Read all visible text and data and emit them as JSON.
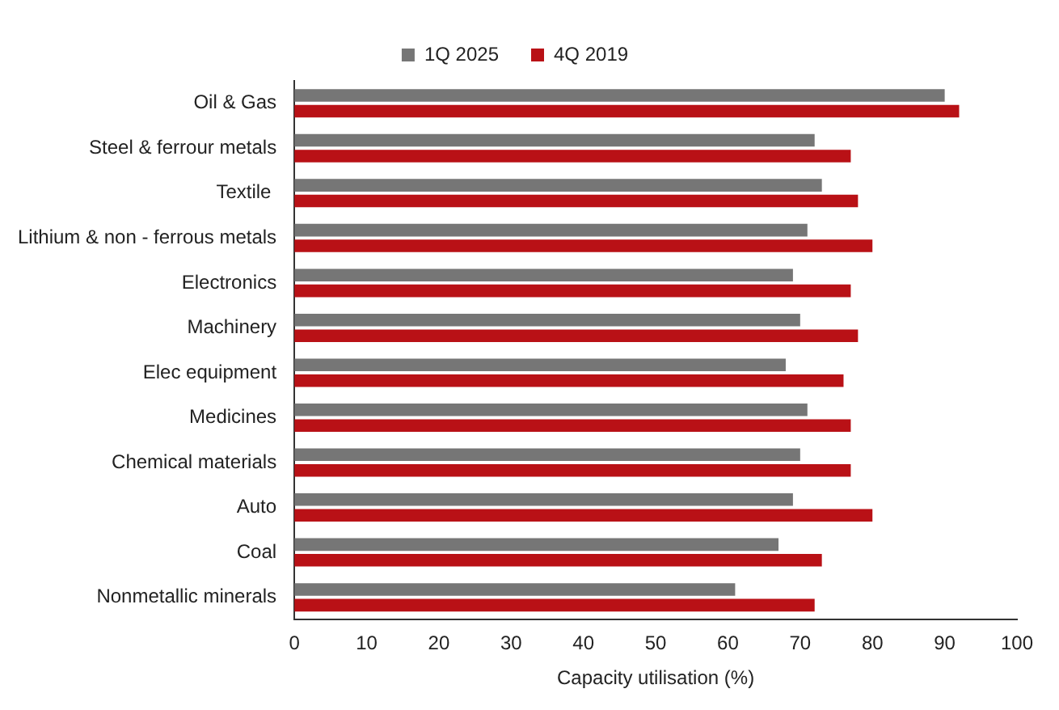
{
  "chart_data": {
    "type": "bar",
    "orientation": "horizontal",
    "xlabel": "Capacity utilisation (%)",
    "categories": [
      "Oil & Gas",
      "Steel & ferrour metals",
      "Textile ",
      "Lithium & non - ferrous metals",
      "Electronics",
      "Machinery",
      "Elec equipment",
      "Medicines",
      "Chemical materials",
      "Auto",
      "Coal",
      "Nonmetallic minerals"
    ],
    "series": [
      {
        "name": "1Q 2025",
        "color": "#767676",
        "values": [
          90,
          72,
          73,
          71,
          69,
          70,
          68,
          71,
          70,
          69,
          67,
          61
        ]
      },
      {
        "name": "4Q 2019",
        "color": "#b91116",
        "values": [
          92,
          77,
          78,
          80,
          77,
          78,
          76,
          77,
          77,
          80,
          73,
          72
        ]
      }
    ],
    "xlim": [
      0,
      100
    ],
    "xticks": [
      0,
      10,
      20,
      30,
      40,
      50,
      60,
      70,
      80,
      90,
      100
    ],
    "grid": false,
    "legend": "top"
  }
}
